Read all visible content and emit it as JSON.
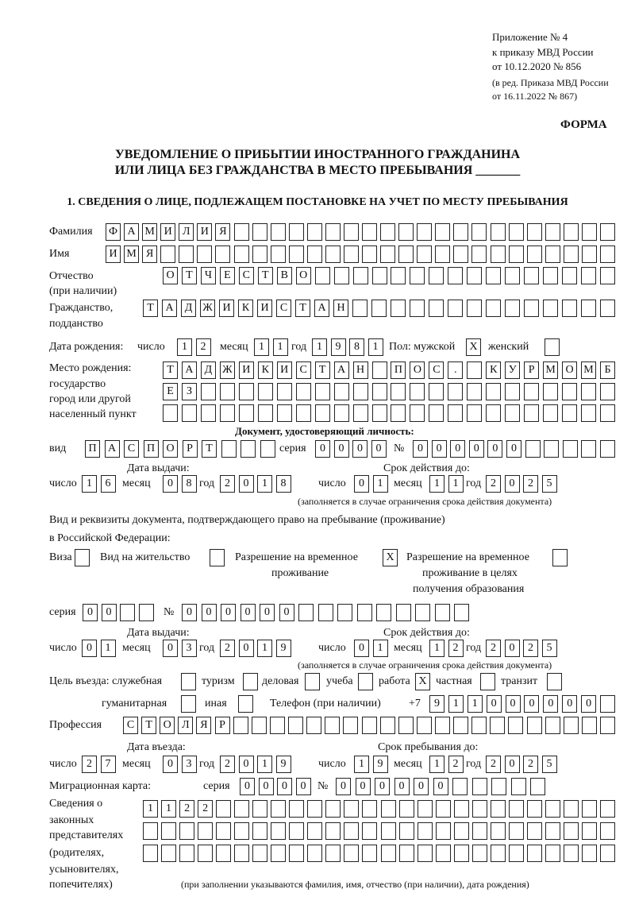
{
  "header": {
    "line1": "Приложение № 4",
    "line2": "к приказу МВД России",
    "line3": "от 10.12.2020 № 856",
    "line4": "(в ред. Приказа МВД России",
    "line5": "от 16.11.2022 № 867)",
    "form_label": "ФОРМА"
  },
  "title": {
    "line1": "УВЕДОМЛЕНИЕ О ПРИБЫТИИ ИНОСТРАННОГО ГРАЖДАНИНА",
    "line2": "ИЛИ ЛИЦА БЕЗ ГРАЖДАНСТВА В МЕСТО ПРЕБЫВАНИЯ _______"
  },
  "section1": {
    "heading": "1. СВЕДЕНИЯ О ЛИЦЕ, ПОДЛЕЖАЩЕМ ПОСТАНОВКЕ НА УЧЕТ ПО МЕСТУ ПРЕБЫВАНИЯ"
  },
  "labels": {
    "surname": "Фамилия",
    "name": "Имя",
    "patronymic": "Отчество",
    "patronymic_note": "(при наличии)",
    "citizenship1": "Гражданство,",
    "citizenship2": "подданство",
    "birth_date": "Дата рождения:",
    "day": "число",
    "month": "месяц",
    "year": "год",
    "sex": "Пол: мужской",
    "female": "женский",
    "birthplace1": "Место рождения:",
    "birthplace2": "государство",
    "birthplace3": "город или другой",
    "birthplace4": "населенный пункт",
    "id_doc": "Документ, удостоверяющий личность:",
    "kind": "вид",
    "series": "серия",
    "number": "№",
    "issue_date": "Дата выдачи:",
    "valid_until": "Срок действия до:",
    "validity_note": "(заполняется в случае ограничения срока действия документа)",
    "stay_doc1": "Вид и реквизиты документа, подтверждающего право на пребывание (проживание)",
    "stay_doc2": "в Российской Федерации:",
    "visa": "Виза",
    "residence": "Вид на жительство",
    "trp1": "Разрешение на временное",
    "trp2": "проживание",
    "trp_edu1": "Разрешение на временное",
    "trp_edu2": "проживание в целях",
    "trp_edu3": "получения образования",
    "purpose": "Цель въезда: служебная",
    "tourism": "туризм",
    "business": "деловая",
    "study": "учеба",
    "work": "работа",
    "private": "частная",
    "transit": "транзит",
    "humanitarian": "гуманитарная",
    "other": "иная",
    "phone": "Телефон (при наличии)",
    "phone_prefix": "+7",
    "profession": "Профессия",
    "entry_date": "Дата въезда:",
    "stay_until": "Срок пребывания до:",
    "migration_card": "Миграционная карта:",
    "rep1": "Сведения о",
    "rep2": "законных",
    "rep3": "представителях",
    "rep4": "(родителях,",
    "rep5": "усыновителях,",
    "rep6": "попечителях)",
    "rep_note": "(при заполнении указываются фамилия, имя, отчество (при наличии), дата рождения)"
  },
  "person": {
    "surname": "ФАМИЛИЯ",
    "name": "ИМЯ",
    "patronymic": "ОТЧЕСТВО",
    "citizenship": "ТАДЖИКИСТАН",
    "birth_day": "12",
    "birth_month": "11",
    "birth_year": "1981",
    "sex_male": "X",
    "sex_female": "",
    "birthplace_row1": "ТАДЖИКИСТАН ПОС. КУРМОМБ",
    "birthplace_row2": "ЕЗ",
    "birthplace_row3": ""
  },
  "id_document": {
    "kind": "ПАСПОРТ",
    "series": "0000",
    "number": "000000",
    "issue_day": "16",
    "issue_month": "08",
    "issue_year": "2018",
    "valid_day": "01",
    "valid_month": "11",
    "valid_year": "2025"
  },
  "stay_document": {
    "visa": "",
    "residence": "",
    "trp": "X",
    "trp_edu": "",
    "series": "00",
    "number": "000000",
    "issue_day": "01",
    "issue_month": "03",
    "issue_year": "2019",
    "valid_day": "01",
    "valid_month": "12",
    "valid_year": "2025"
  },
  "purpose": {
    "official": "",
    "tourism": "",
    "business": "",
    "study": "",
    "work": "X",
    "private": "",
    "transit": "",
    "humanitarian": "",
    "other": ""
  },
  "phone": "911000000",
  "profession": "СТОЛЯР",
  "entry": {
    "day": "27",
    "month": "03",
    "year": "2019",
    "stay_day": "19",
    "stay_month": "12",
    "stay_year": "2025"
  },
  "migration_card": {
    "series": "0000",
    "number": "000000"
  },
  "representatives": {
    "row1": "1122",
    "row2": "",
    "row3": ""
  }
}
